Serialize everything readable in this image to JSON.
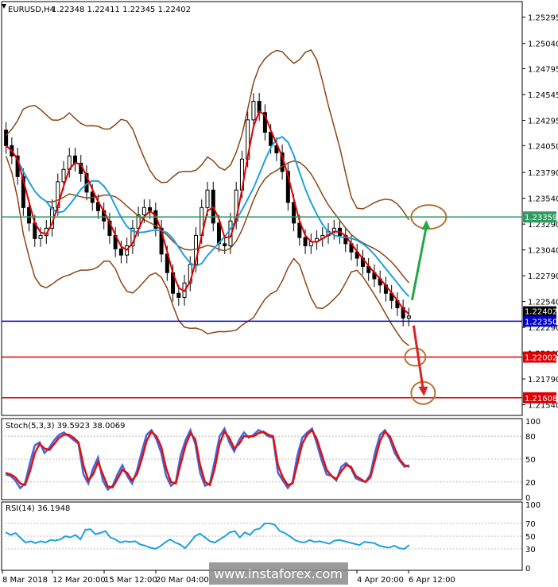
{
  "header": {
    "symbol": "EURUSD,H4",
    "ohlc": "1.22348 1.22411 1.22345 1.22402",
    "stoch": "Stoch(5,3,3) 39.5923 38.0069",
    "rsi": "RSI(14) 36.1948",
    "watermark": "www.instaforex.com"
  },
  "chart_data": [
    {
      "type": "candlestick",
      "price_axis": [
        "1.25295",
        "1.25040",
        "1.24795",
        "1.24545",
        "1.24295",
        "1.24050",
        "1.23790",
        "1.23540",
        "1.23290",
        "1.23040",
        "1.22790",
        "1.22540",
        "1.22290",
        "1.22040",
        "1.21790",
        "1.21540"
      ],
      "ylim": [
        1.2146,
        1.2543
      ],
      "time_axis": [
        "8 Mar 2018",
        "12 Mar 20:00",
        "15 Mar 12:00",
        "20 Mar 04:00",
        "4 Apr 20:00",
        "6 Apr 12:00"
      ],
      "closes": [
        1.2405,
        1.2395,
        1.2375,
        1.2345,
        1.233,
        1.2315,
        1.2318,
        1.2325,
        1.2345,
        1.237,
        1.2382,
        1.2395,
        1.2388,
        1.2378,
        1.236,
        1.235,
        1.2342,
        1.2332,
        1.2318,
        1.2305,
        1.2299,
        1.2308,
        1.2325,
        1.2338,
        1.2345,
        1.2342,
        1.2325,
        1.23,
        1.2282,
        1.2262,
        1.2258,
        1.2272,
        1.229,
        1.2318,
        1.2345,
        1.2362,
        1.233,
        1.231,
        1.2308,
        1.2332,
        1.2362,
        1.2392,
        1.243,
        1.2448,
        1.2437,
        1.2418,
        1.2405,
        1.2398,
        1.238,
        1.235,
        1.233,
        1.2316,
        1.2308,
        1.2312,
        1.2315,
        1.2318,
        1.2322,
        1.2325,
        1.2318,
        1.231,
        1.2302,
        1.2296,
        1.2288,
        1.2282,
        1.2276,
        1.227,
        1.2262,
        1.2255,
        1.2248,
        1.2238,
        1.224
      ],
      "levels": [
        {
          "value": 1.23359,
          "label": "1.23359",
          "color": "#2e9b5f"
        },
        {
          "value": 1.2235,
          "label": "1.22350",
          "color": "#0000cc"
        },
        {
          "value": 1.22002,
          "label": "1.22002",
          "color": "#dd0000"
        },
        {
          "value": 1.21608,
          "label": "1.21608",
          "color": "#dd0000"
        }
      ],
      "current_price": "1.22402",
      "overlays": [
        "moving averages (red, cyan)",
        "Bollinger Bands (brown)"
      ],
      "annotations": [
        "green arrow up to 1.23359",
        "red arrow down to 1.21608"
      ]
    },
    {
      "type": "line",
      "ylim": [
        0,
        100
      ],
      "ticks": [
        "100",
        "80",
        "50",
        "20",
        "0"
      ],
      "series": [
        {
          "values": [
            30,
            28,
            22,
            12,
            18,
            45,
            68,
            72,
            58,
            65,
            75,
            82,
            85,
            80,
            75,
            70,
            30,
            18,
            38,
            52,
            22,
            10,
            15,
            30,
            42,
            28,
            18,
            35,
            60,
            82,
            88,
            76,
            58,
            28,
            15,
            20,
            55,
            75,
            88,
            70,
            32,
            15,
            18,
            48,
            80,
            90,
            72,
            60,
            75,
            85,
            78,
            82,
            88,
            85,
            80,
            78,
            32,
            22,
            12,
            20,
            55,
            78,
            85,
            90,
            70,
            48,
            30,
            28,
            22,
            40,
            45,
            38,
            25,
            22,
            20,
            30,
            60,
            82,
            88,
            76,
            58,
            48,
            40,
            42
          ]
        },
        {
          "values": [
            32,
            30,
            26,
            18,
            16,
            34,
            58,
            70,
            64,
            62,
            70,
            78,
            82,
            82,
            78,
            72,
            42,
            22,
            30,
            46,
            30,
            14,
            13,
            24,
            36,
            32,
            22,
            30,
            50,
            74,
            86,
            80,
            66,
            38,
            20,
            18,
            44,
            68,
            84,
            76,
            42,
            20,
            16,
            38,
            70,
            86,
            78,
            64,
            70,
            80,
            80,
            80,
            84,
            86,
            82,
            80,
            42,
            26,
            16,
            18,
            44,
            70,
            82,
            88,
            76,
            56,
            36,
            28,
            24,
            34,
            42,
            40,
            28,
            24,
            20,
            26,
            50,
            74,
            86,
            80,
            64,
            50,
            42,
            40
          ]
        }
      ]
    },
    {
      "type": "line",
      "ylim": [
        0,
        100
      ],
      "ticks": [
        "100",
        "70",
        "50",
        "30",
        "0"
      ],
      "series": [
        {
          "values": [
            56,
            52,
            55,
            47,
            40,
            42,
            39,
            42,
            40,
            44,
            43,
            45,
            50,
            48,
            52,
            45,
            60,
            61,
            53,
            55,
            58,
            48,
            45,
            40,
            42,
            41,
            42,
            37,
            35,
            32,
            30,
            34,
            40,
            45,
            40,
            37,
            31,
            40,
            50,
            54,
            48,
            42,
            40,
            45,
            50,
            56,
            58,
            48,
            56,
            52,
            60,
            62,
            70,
            70,
            68,
            58,
            55,
            50,
            44,
            41,
            40,
            44,
            41,
            42,
            40,
            38,
            43,
            44,
            42,
            40,
            38,
            36,
            41,
            40,
            39,
            35,
            33,
            32,
            35,
            31,
            30,
            36
          ]
        }
      ]
    }
  ]
}
